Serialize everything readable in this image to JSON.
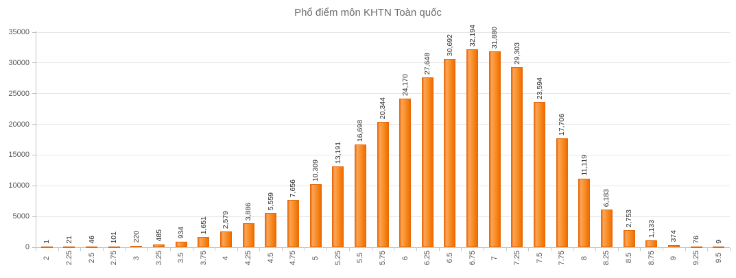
{
  "title": "Phổ điểm môn KHTN Toàn quốc",
  "chart_data": {
    "type": "bar",
    "title": "Phổ điểm môn KHTN Toàn quốc",
    "categories": [
      "2",
      "2.25",
      "2.5",
      "2.75",
      "3",
      "3.25",
      "3.5",
      "3.75",
      "4",
      "4.25",
      "4.5",
      "4.75",
      "5",
      "5.25",
      "5.5",
      "5.75",
      "6",
      "6.25",
      "6.5",
      "6.75",
      "7",
      "7.25",
      "7.5",
      "7.75",
      "8",
      "8.25",
      "8.5",
      "8.75",
      "9",
      "9.25",
      "9.5"
    ],
    "values": [
      1,
      21,
      46,
      101,
      220,
      485,
      934,
      1651,
      2579,
      3886,
      5559,
      7656,
      10309,
      13191,
      16698,
      20344,
      24170,
      27648,
      30692,
      32194,
      31880,
      29303,
      23594,
      17706,
      11119,
      6183,
      2753,
      1133,
      374,
      76,
      9
    ],
    "xlabel": "",
    "ylabel": "",
    "ylim": [
      0,
      35000
    ],
    "ytick_interval": 5000,
    "grid": true,
    "legend": "none",
    "data_labels": true,
    "data_label_rotation": -90,
    "x_label_rotation": -90,
    "bar_color": "#f7941e",
    "bar_color_light": "#fca45c",
    "bar_color_dark": "#ef6c00",
    "bar_border_color": "#e4690b",
    "title_color": "#6b6b6b",
    "axis_text_color": "#555555"
  }
}
